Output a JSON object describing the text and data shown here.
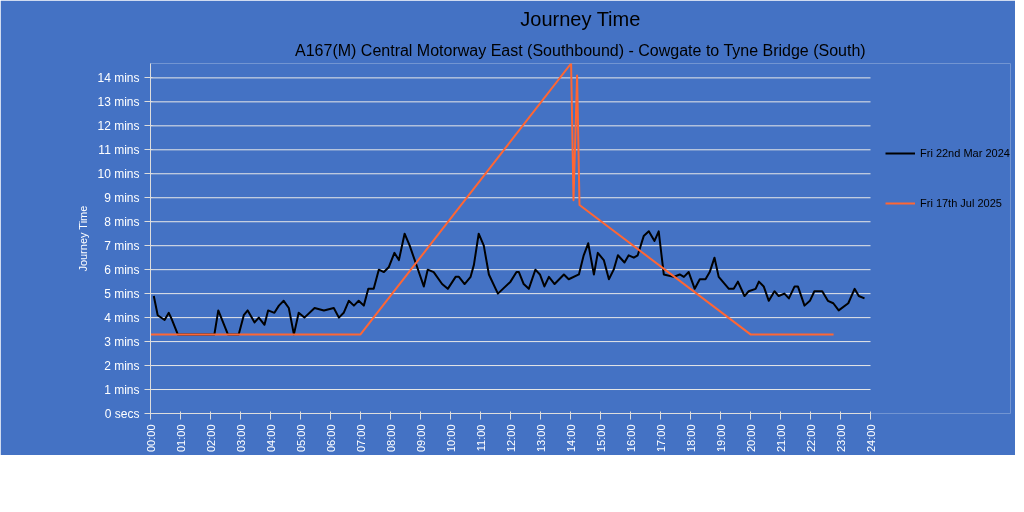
{
  "chart_data": {
    "type": "line",
    "title": "Journey Time",
    "subtitle": "A167(M) Central Motorway East (Southbound) - Cowgate to Tyne Bridge (South)",
    "ylabel": "Journey Time",
    "xlim": [
      0,
      24
    ],
    "ylim": [
      0,
      14.6
    ],
    "xticks": [
      {
        "value": 0,
        "label": "00:00"
      },
      {
        "value": 1,
        "label": "01:00"
      },
      {
        "value": 2,
        "label": "02:00"
      },
      {
        "value": 3,
        "label": "03:00"
      },
      {
        "value": 4,
        "label": "04:00"
      },
      {
        "value": 5,
        "label": "05:00"
      },
      {
        "value": 6,
        "label": "06:00"
      },
      {
        "value": 7,
        "label": "07:00"
      },
      {
        "value": 8,
        "label": "08:00"
      },
      {
        "value": 9,
        "label": "09:00"
      },
      {
        "value": 10,
        "label": "10:00"
      },
      {
        "value": 11,
        "label": "11:00"
      },
      {
        "value": 12,
        "label": "12:00"
      },
      {
        "value": 13,
        "label": "13:00"
      },
      {
        "value": 14,
        "label": "14:00"
      },
      {
        "value": 15,
        "label": "15:00"
      },
      {
        "value": 16,
        "label": "16:00"
      },
      {
        "value": 17,
        "label": "17:00"
      },
      {
        "value": 18,
        "label": "18:00"
      },
      {
        "value": 19,
        "label": "19:00"
      },
      {
        "value": 20,
        "label": "20:00"
      },
      {
        "value": 21,
        "label": "21:00"
      },
      {
        "value": 22,
        "label": "22:00"
      },
      {
        "value": 23,
        "label": "23:00"
      },
      {
        "value": 24,
        "label": "24:00"
      }
    ],
    "yticks": [
      {
        "value": 0,
        "label": "0 secs"
      },
      {
        "value": 1,
        "label": "1 mins"
      },
      {
        "value": 2,
        "label": "2 mins"
      },
      {
        "value": 3,
        "label": "3 mins"
      },
      {
        "value": 4,
        "label": "4 mins"
      },
      {
        "value": 5,
        "label": "5 mins"
      },
      {
        "value": 6,
        "label": "6 mins"
      },
      {
        "value": 7,
        "label": "7 mins"
      },
      {
        "value": 8,
        "label": "8 mins"
      },
      {
        "value": 9,
        "label": "9 mins"
      },
      {
        "value": 10,
        "label": "10 mins"
      },
      {
        "value": 11,
        "label": "11 mins"
      },
      {
        "value": 12,
        "label": "12 mins"
      },
      {
        "value": 13,
        "label": "13 mins"
      },
      {
        "value": 14,
        "label": "14 mins"
      }
    ],
    "grid": "y",
    "legend": "right",
    "series": [
      {
        "name": "Fri 22nd Mar 2024",
        "color": "#000000",
        "x": [
          0.11,
          0.24,
          0.47,
          0.61,
          0.72,
          0.91,
          2.13,
          2.26,
          2.58,
          2.94,
          3.11,
          3.24,
          3.47,
          3.61,
          3.8,
          3.92,
          4.13,
          4.28,
          4.44,
          4.61,
          4.78,
          4.94,
          5.13,
          5.47,
          5.78,
          6.11,
          6.28,
          6.44,
          6.61,
          6.78,
          6.94,
          7.11,
          7.26,
          7.44,
          7.61,
          7.78,
          7.94,
          8.13,
          8.28,
          8.47,
          8.64,
          8.89,
          9.11,
          9.24,
          9.44,
          9.72,
          9.91,
          10.17,
          10.28,
          10.47,
          10.67,
          10.78,
          10.94,
          11.11,
          11.28,
          11.58,
          12.0,
          12.2,
          12.28,
          12.44,
          12.61,
          12.83,
          12.98,
          13.13,
          13.28,
          13.47,
          13.78,
          13.94,
          14.28,
          14.44,
          14.59,
          14.78,
          14.91,
          15.11,
          15.28,
          15.44,
          15.58,
          15.8,
          15.94,
          16.11,
          16.24,
          16.44,
          16.61,
          16.8,
          16.94,
          17.11,
          17.44,
          17.64,
          17.78,
          17.94,
          18.14,
          18.31,
          18.5,
          18.64,
          18.8,
          18.94,
          19.28,
          19.44,
          19.58,
          19.8,
          19.94,
          20.17,
          20.28,
          20.44,
          20.61,
          20.8,
          20.94,
          21.13,
          21.28,
          21.47,
          21.58,
          21.8,
          21.98,
          22.13,
          22.39,
          22.58,
          22.76,
          22.94,
          23.26,
          23.47,
          23.61,
          23.8
        ],
        "values": [
          4.9,
          4.1,
          3.9,
          4.2,
          3.9,
          3.3,
          3.3,
          4.3,
          3.3,
          3.3,
          4.1,
          4.3,
          3.8,
          4.0,
          3.7,
          4.3,
          4.2,
          4.5,
          4.7,
          4.4,
          3.3,
          4.2,
          4.0,
          4.4,
          4.3,
          4.4,
          4.0,
          4.2,
          4.7,
          4.5,
          4.7,
          4.5,
          5.2,
          5.2,
          6.0,
          5.9,
          6.1,
          6.7,
          6.4,
          7.5,
          7.0,
          6.1,
          5.3,
          6.0,
          5.9,
          5.4,
          5.2,
          5.7,
          5.7,
          5.4,
          5.7,
          6.2,
          7.5,
          7.0,
          5.8,
          5.0,
          5.5,
          5.9,
          5.9,
          5.4,
          5.2,
          6.0,
          5.8,
          5.3,
          5.7,
          5.4,
          5.8,
          5.6,
          5.8,
          6.6,
          7.1,
          5.8,
          6.7,
          6.4,
          5.6,
          6.0,
          6.6,
          6.3,
          6.6,
          6.5,
          6.6,
          7.4,
          7.6,
          7.2,
          7.6,
          5.8,
          5.7,
          5.8,
          5.7,
          5.9,
          5.2,
          5.6,
          5.6,
          5.9,
          6.5,
          5.7,
          5.2,
          5.2,
          5.5,
          4.9,
          5.1,
          5.2,
          5.5,
          5.3,
          4.7,
          5.1,
          4.9,
          5.0,
          4.8,
          5.3,
          5.3,
          4.5,
          4.7,
          5.1,
          5.1,
          4.7,
          4.6,
          4.3,
          4.6,
          5.2,
          4.9,
          4.8
        ]
      },
      {
        "name": "Fri 17th Jul 2025",
        "color": "#ff6633",
        "x": [
          0,
          7.0,
          14.02,
          14.1,
          14.22,
          14.3,
          20.0,
          22.77
        ],
        "values": [
          3.3,
          3.3,
          14.6,
          8.9,
          14.1,
          8.7,
          3.3,
          3.3
        ]
      }
    ]
  }
}
